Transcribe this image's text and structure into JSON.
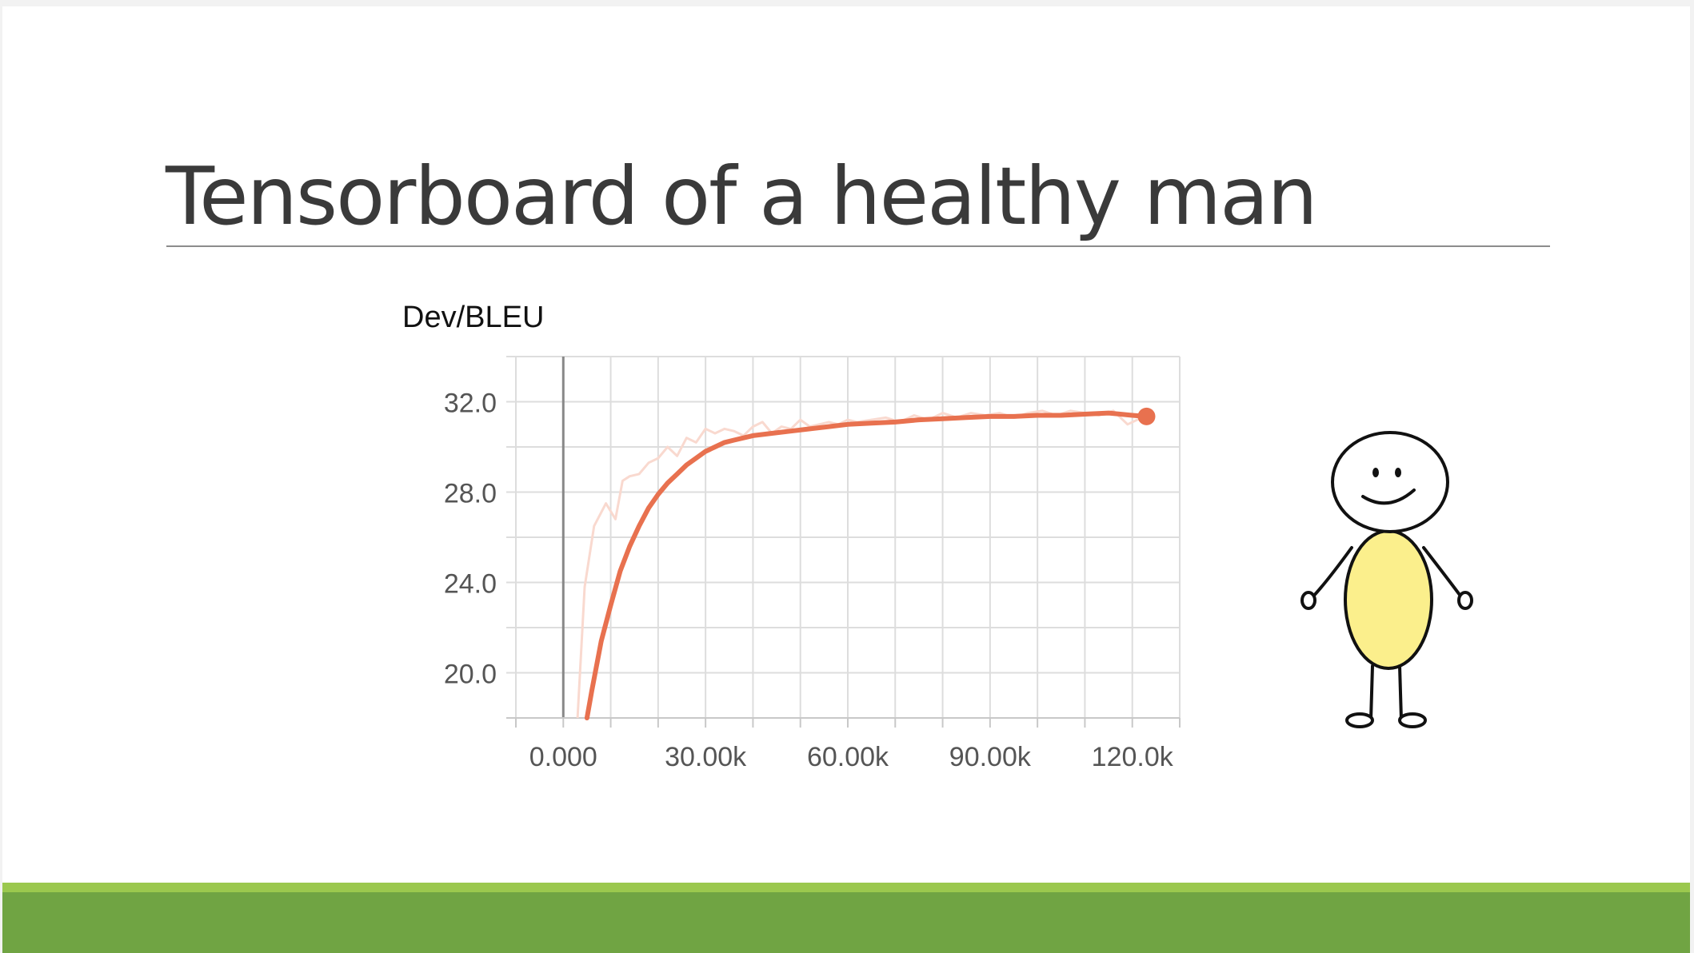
{
  "slide": {
    "title": "Tensorboard of a healthy man"
  },
  "chart_data": {
    "type": "line",
    "title": "Dev/BLEU",
    "xlabel": "",
    "ylabel": "",
    "xlim": [
      -10000,
      130000
    ],
    "ylim": [
      18.0,
      34.0
    ],
    "x_ticks": [
      0,
      30000,
      60000,
      90000,
      120000
    ],
    "x_tick_labels": [
      "0.000",
      "30.00k",
      "60.00k",
      "90.00k",
      "120.0k"
    ],
    "y_ticks": [
      20.0,
      24.0,
      28.0,
      32.0
    ],
    "y_tick_labels": [
      "20.0",
      "24.0",
      "28.0",
      "32.0"
    ],
    "grid": true,
    "colors": {
      "smoothed": "#e8714f",
      "raw": "#f9d9cf",
      "grid": "#dddddd",
      "zero_line": "#888888"
    },
    "series": [
      {
        "values_kind": "raw",
        "x": [
          3000,
          4500,
          6500,
          9000,
          11000,
          12500,
          14000,
          16000,
          18000,
          20000,
          22000,
          24000,
          26000,
          28000,
          30000,
          32000,
          34000,
          36000,
          38000,
          40000,
          42000,
          44000,
          46000,
          48000,
          50000,
          52000,
          54000,
          56000,
          58000,
          60000,
          62000,
          65000,
          68000,
          71000,
          74000,
          77000,
          80000,
          83000,
          86000,
          89000,
          92000,
          95000,
          98000,
          101000,
          104000,
          107000,
          110000,
          113000,
          116000,
          119000,
          122000,
          124000
        ],
        "y": [
          18.0,
          23.8,
          26.5,
          27.5,
          26.8,
          28.5,
          28.7,
          28.8,
          29.3,
          29.5,
          30.0,
          29.6,
          30.4,
          30.2,
          30.8,
          30.6,
          30.8,
          30.7,
          30.5,
          30.9,
          31.1,
          30.6,
          30.9,
          30.8,
          31.2,
          30.9,
          31.0,
          31.1,
          31.0,
          31.2,
          31.1,
          31.2,
          31.3,
          31.1,
          31.4,
          31.2,
          31.5,
          31.3,
          31.5,
          31.4,
          31.5,
          31.3,
          31.5,
          31.6,
          31.4,
          31.6,
          31.5,
          31.4,
          31.6,
          31.0,
          31.3,
          31.4
        ]
      },
      {
        "values_kind": "smoothed",
        "x": [
          5000,
          6000,
          8000,
          10000,
          12000,
          14000,
          16000,
          18000,
          20000,
          22000,
          24000,
          26000,
          28000,
          30000,
          32000,
          34000,
          36000,
          38000,
          40000,
          44000,
          48000,
          52000,
          56000,
          60000,
          65000,
          70000,
          75000,
          80000,
          85000,
          90000,
          95000,
          100000,
          105000,
          110000,
          115000,
          120000,
          123000
        ],
        "y": [
          18.0,
          19.2,
          21.4,
          23.0,
          24.5,
          25.6,
          26.5,
          27.3,
          27.9,
          28.4,
          28.8,
          29.2,
          29.5,
          29.8,
          30.0,
          30.2,
          30.3,
          30.4,
          30.5,
          30.6,
          30.7,
          30.8,
          30.9,
          31.0,
          31.05,
          31.1,
          31.2,
          31.25,
          31.3,
          31.35,
          31.35,
          31.4,
          31.4,
          31.45,
          31.5,
          31.4,
          31.35
        ]
      }
    ]
  }
}
